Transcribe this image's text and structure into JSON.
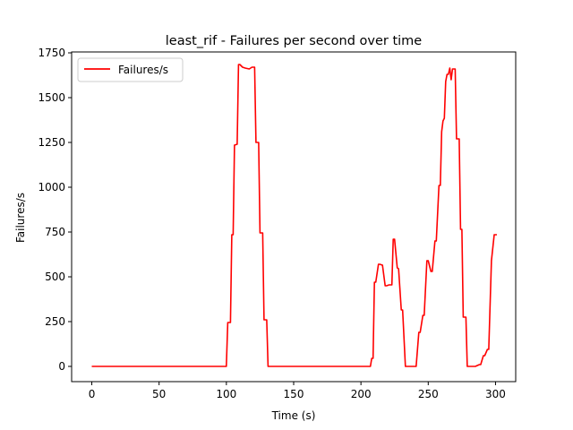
{
  "chart_data": {
    "type": "line",
    "title": "least_rif - Failures per second over time",
    "xlabel": "Time (s)",
    "ylabel": "Failures/s",
    "xlim": [
      -15,
      315
    ],
    "ylim": [
      -85,
      1755
    ],
    "xticks": [
      0,
      50,
      100,
      150,
      200,
      250,
      300
    ],
    "yticks": [
      0,
      250,
      500,
      750,
      1000,
      1250,
      1500,
      1750
    ],
    "grid": false,
    "legend": {
      "position": "top-left"
    },
    "series": [
      {
        "name": "Failures/s",
        "color": "#ff0000",
        "x": [
          0,
          100,
          101,
          103,
          104,
          105,
          106,
          108,
          109,
          110,
          112,
          114,
          117,
          119,
          121,
          122,
          124,
          125,
          127,
          128,
          130,
          131,
          133,
          135,
          200,
          206,
          207,
          208,
          209,
          210,
          211,
          213,
          214,
          216,
          218,
          219,
          221,
          223,
          224,
          225,
          227,
          228,
          230,
          231,
          233,
          234,
          236,
          241,
          243,
          244,
          246,
          247,
          249,
          250,
          252,
          253,
          255,
          256,
          258,
          259,
          260,
          261,
          262,
          263,
          264,
          265,
          266,
          267,
          268,
          269,
          270,
          271,
          273,
          274,
          275,
          276,
          278,
          279,
          281,
          282,
          285,
          288,
          289,
          291,
          292,
          294,
          295,
          297,
          299,
          300,
          301
        ],
        "y": [
          0,
          0,
          245,
          245,
          735,
          735,
          1235,
          1240,
          1685,
          1685,
          1670,
          1665,
          1660,
          1670,
          1670,
          1250,
          1250,
          745,
          745,
          260,
          260,
          0,
          0,
          0,
          0,
          0,
          0,
          45,
          45,
          470,
          470,
          570,
          570,
          565,
          450,
          450,
          455,
          455,
          710,
          710,
          550,
          545,
          315,
          315,
          0,
          0,
          0,
          0,
          190,
          190,
          285,
          285,
          590,
          590,
          530,
          530,
          700,
          700,
          1010,
          1010,
          1310,
          1370,
          1385,
          1590,
          1630,
          1630,
          1665,
          1600,
          1660,
          1660,
          1660,
          1270,
          1270,
          765,
          765,
          275,
          275,
          0,
          0,
          0,
          0,
          10,
          10,
          60,
          60,
          95,
          95,
          590,
          735,
          735,
          735
        ]
      }
    ]
  }
}
